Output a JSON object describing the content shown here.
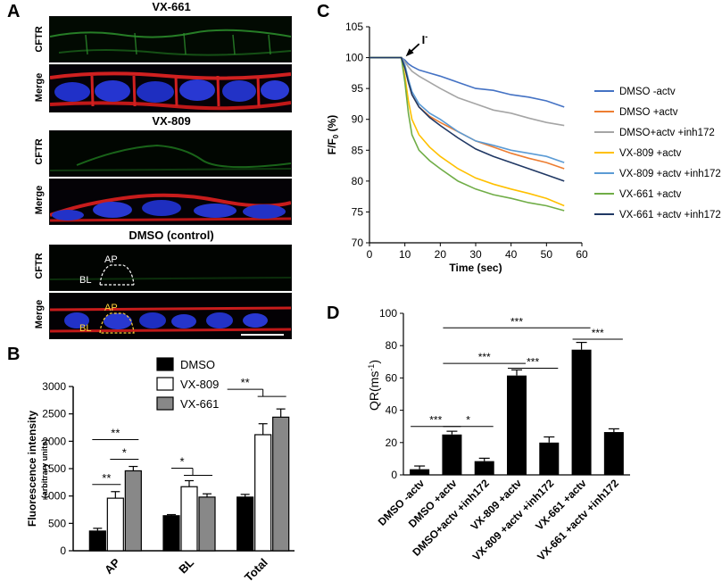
{
  "panel_labels": {
    "a": "A",
    "b": "B",
    "c": "C",
    "d": "D"
  },
  "panel_a": {
    "groups": [
      {
        "title": "VX-661",
        "rows": [
          "CFTR",
          "Merge"
        ]
      },
      {
        "title": "VX-809",
        "rows": [
          "CFTR",
          "Merge"
        ]
      },
      {
        "title": "DMSO (control)",
        "rows": [
          "CFTR",
          "Merge"
        ]
      }
    ],
    "annotations": {
      "ap": "AP",
      "bl": "BL"
    }
  },
  "chart_data": [
    {
      "id": "B",
      "type": "bar",
      "categories": [
        "AP",
        "BL",
        "Total"
      ],
      "series": [
        {
          "name": "DMSO",
          "color": "#000000",
          "values": [
            360,
            640,
            980
          ],
          "errors": [
            50,
            20,
            50
          ]
        },
        {
          "name": "VX-809",
          "color": "#ffffff",
          "values": [
            960,
            1170,
            2120
          ],
          "errors": [
            120,
            110,
            200
          ]
        },
        {
          "name": "VX-661",
          "color": "#888888",
          "values": [
            1460,
            980,
            2440
          ],
          "errors": [
            80,
            60,
            150
          ]
        }
      ],
      "ylabel": "Fluorescence intensity",
      "ylabel_sub": "(arbitrary units)",
      "ylim": [
        0,
        3000
      ],
      "yticks": [
        0,
        500,
        1000,
        1500,
        2000,
        2500,
        3000
      ],
      "significance": [
        "**",
        "*",
        "**",
        "*",
        "**"
      ]
    },
    {
      "id": "C",
      "type": "line",
      "xlabel": "Time (sec)",
      "ylabel": "F/F",
      "ylabel_sub": "0",
      "ylabel_unit": " (%)",
      "xlim": [
        0,
        60
      ],
      "ylim": [
        70,
        105
      ],
      "xticks": [
        0,
        10,
        20,
        30,
        40,
        50,
        60
      ],
      "yticks": [
        70,
        75,
        80,
        85,
        90,
        95,
        100,
        105
      ],
      "annotation": "I",
      "annotation_sup": "-",
      "x": [
        0,
        9,
        10,
        11,
        12,
        14,
        17,
        20,
        25,
        30,
        35,
        40,
        45,
        50,
        55
      ],
      "series": [
        {
          "name": "DMSO -actv",
          "color": "#4472c4",
          "values": [
            100,
            100,
            99.6,
            99.0,
            98.6,
            98.0,
            97.5,
            97.0,
            96.0,
            95.0,
            94.7,
            94.0,
            93.6,
            93.0,
            92.0
          ]
        },
        {
          "name": "DMSO +actv",
          "color": "#ed7d31",
          "values": [
            100,
            100,
            98.5,
            96.0,
            94.0,
            92.0,
            90.5,
            89.5,
            88.0,
            86.5,
            85.5,
            84.5,
            83.7,
            83.0,
            82.0
          ]
        },
        {
          "name": "DMSO+actv +inh172",
          "color": "#a5a5a5",
          "values": [
            100,
            100,
            99.3,
            98.5,
            97.8,
            97.0,
            96.0,
            95.0,
            93.5,
            92.5,
            91.5,
            91.0,
            90.2,
            89.5,
            89.0
          ]
        },
        {
          "name": "VX-809 +actv",
          "color": "#ffc000",
          "values": [
            100,
            100,
            97.0,
            93.0,
            90.0,
            87.5,
            85.5,
            84.0,
            82.0,
            80.5,
            79.5,
            78.7,
            78.0,
            77.2,
            76.0
          ]
        },
        {
          "name": "VX-809 +actv +inh172",
          "color": "#5b9bd5",
          "values": [
            100,
            100,
            98.8,
            96.5,
            94.5,
            92.5,
            91.0,
            90.0,
            88.0,
            86.5,
            85.8,
            85.0,
            84.5,
            84.0,
            83.0
          ]
        },
        {
          "name": "VX-661 +actv",
          "color": "#70ad47",
          "values": [
            100,
            100,
            96.0,
            91.0,
            87.5,
            85.0,
            83.3,
            82.0,
            80.0,
            78.7,
            77.8,
            77.2,
            76.5,
            76.0,
            75.2
          ]
        },
        {
          "name": "VX-661 +actv +inh172",
          "color": "#203864",
          "values": [
            100,
            100,
            98.3,
            96.0,
            94.0,
            92.0,
            90.3,
            89.0,
            87.0,
            85.2,
            84.0,
            83.0,
            82.0,
            81.0,
            80.0
          ]
        }
      ]
    },
    {
      "id": "D",
      "type": "bar",
      "categories": [
        "DMSO -actv",
        "DMSO +actv",
        "DMSO+actv +inh172",
        "VX-809 +actv",
        "VX-809 +actv +inh172",
        "VX-661 +actv",
        "VX-661 +actv +inh172"
      ],
      "values": [
        3.5,
        25,
        8.5,
        61.5,
        20,
        77.5,
        26.5
      ],
      "errors": [
        2,
        2,
        1.8,
        3.5,
        3.5,
        4.5,
        2
      ],
      "ylabel": "QR(ms",
      "ylabel_sup": "-1",
      "ylabel_end": ")",
      "ylim": [
        0,
        100
      ],
      "yticks": [
        0,
        20,
        40,
        60,
        80,
        100
      ],
      "significance": [
        "***",
        "*",
        "***",
        "***",
        "***",
        "***"
      ]
    }
  ]
}
